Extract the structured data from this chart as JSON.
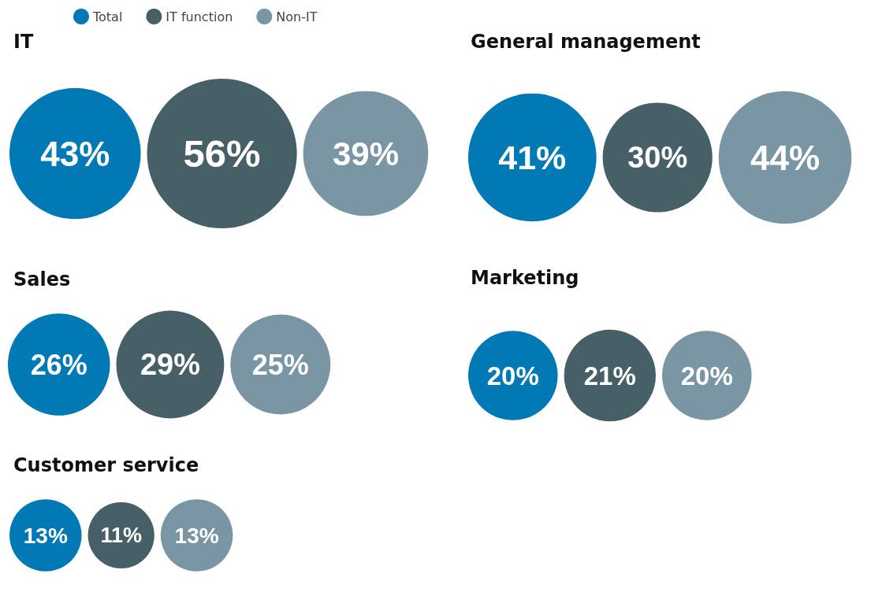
{
  "chart_data": [
    {
      "type": "other",
      "title": "IT",
      "categories": [
        "Total",
        "IT function",
        "Non-IT"
      ],
      "values": [
        43,
        56,
        39
      ],
      "value_labels": [
        "43%",
        "56%",
        "39%"
      ],
      "colors": [
        "#0079b5",
        "#475f67",
        "#7a95a3"
      ]
    },
    {
      "type": "other",
      "title": "General management",
      "categories": [
        null,
        null,
        null
      ],
      "values": [
        41,
        30,
        44
      ],
      "value_labels": [
        "41%",
        "30%",
        "44%"
      ],
      "colors": [
        "#0079b5",
        "#475f67",
        "#7a95a3"
      ]
    },
    {
      "type": "other",
      "title": "Sales",
      "categories": [
        null,
        null,
        null
      ],
      "values": [
        26,
        29,
        25
      ],
      "value_labels": [
        "26%",
        "29%",
        "25%"
      ],
      "colors": [
        "#0079b5",
        "#475f67",
        "#7a95a3"
      ]
    },
    {
      "type": "other",
      "title": "Marketing",
      "categories": [
        null,
        null,
        null
      ],
      "values": [
        20,
        21,
        20
      ],
      "value_labels": [
        "20%",
        "21%",
        "20%"
      ],
      "colors": [
        "#0079b5",
        "#475f67",
        "#7a95a3"
      ]
    },
    {
      "type": "other",
      "title": "Customer service",
      "categories": [
        null,
        null,
        null
      ],
      "values": [
        13,
        11,
        13
      ],
      "value_labels": [
        "13%",
        "11%",
        "13%"
      ],
      "colors": [
        "#0079b5",
        "#475f67",
        "#7a95a3"
      ]
    }
  ]
}
